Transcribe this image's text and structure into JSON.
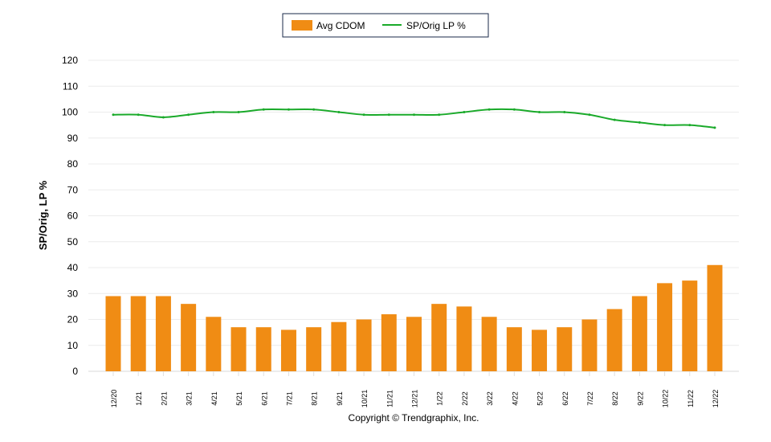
{
  "chart_data": {
    "type": "bar",
    "title": "",
    "xlabel": "",
    "ylabel": "SP/Orig, LP %",
    "ylim": [
      0,
      120
    ],
    "yticks": [
      0,
      10,
      20,
      30,
      40,
      50,
      60,
      70,
      80,
      90,
      100,
      110,
      120
    ],
    "grid": true,
    "legend_position": "top-center",
    "categories": [
      "12/20",
      "1/21",
      "2/21",
      "3/21",
      "4/21",
      "5/21",
      "6/21",
      "7/21",
      "8/21",
      "9/21",
      "10/21",
      "11/21",
      "12/21",
      "1/22",
      "2/22",
      "3/22",
      "4/22",
      "5/22",
      "6/22",
      "7/22",
      "8/22",
      "9/22",
      "10/22",
      "11/22",
      "12/22"
    ],
    "series": [
      {
        "name": "Avg CDOM",
        "type": "bar",
        "color": "#f08c14",
        "values": [
          29,
          29,
          29,
          26,
          21,
          17,
          17,
          16,
          17,
          19,
          20,
          22,
          21,
          26,
          25,
          21,
          17,
          16,
          17,
          20,
          24,
          29,
          34,
          35,
          41
        ]
      },
      {
        "name": "SP/Orig LP %",
        "type": "line",
        "color": "#1aaa2a",
        "values": [
          99,
          99,
          98,
          99,
          100,
          100,
          101,
          101,
          101,
          100,
          99,
          99,
          99,
          99,
          100,
          101,
          101,
          100,
          100,
          99,
          97,
          96,
          95,
          95,
          94
        ]
      }
    ]
  },
  "footer": {
    "copyright": "Copyright © Trendgraphix, Inc."
  }
}
